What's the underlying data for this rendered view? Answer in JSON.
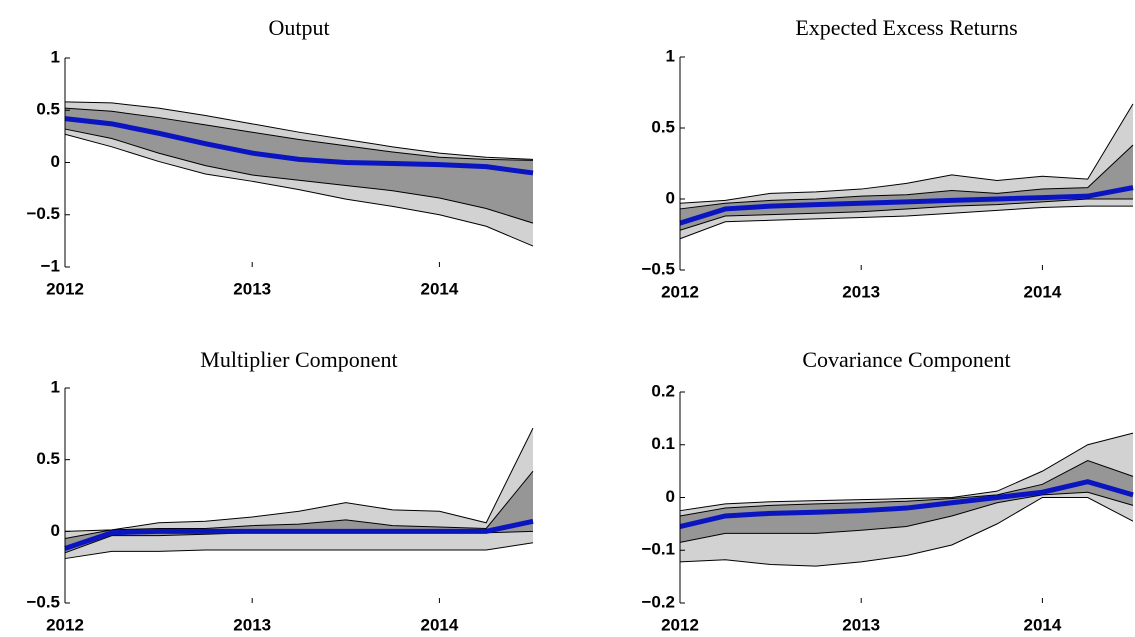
{
  "chart_data": [
    {
      "type": "fan",
      "title": "Output",
      "x": [
        2012,
        2012.25,
        2012.5,
        2012.75,
        2013,
        2013.25,
        2013.5,
        2013.75,
        2014,
        2014.25,
        2014.5
      ],
      "xlim": [
        2012,
        2014.5
      ],
      "xticks": [
        2012,
        2013,
        2014
      ],
      "ylim": [
        -1,
        1
      ],
      "yticks": [
        {
          "value": -1,
          "label": "−1"
        },
        {
          "value": -0.5,
          "label": "−0.5"
        },
        0,
        0.5,
        1
      ],
      "bands": [
        {
          "color": "#d2d2d2",
          "lower": [
            0.27,
            0.15,
            0.01,
            -0.11,
            -0.18,
            -0.26,
            -0.35,
            -0.42,
            -0.5,
            -0.61,
            -0.8
          ],
          "upper": [
            0.58,
            0.57,
            0.52,
            0.45,
            0.37,
            0.29,
            0.22,
            0.15,
            0.09,
            0.05,
            0.03
          ]
        },
        {
          "color": "#969696",
          "lower": [
            0.32,
            0.23,
            0.09,
            -0.03,
            -0.12,
            -0.17,
            -0.22,
            -0.27,
            -0.34,
            -0.44,
            -0.58
          ],
          "upper": [
            0.52,
            0.49,
            0.43,
            0.36,
            0.29,
            0.22,
            0.16,
            0.1,
            0.05,
            0.03,
            0.02
          ]
        }
      ],
      "series": [
        {
          "color": "#0a14c0",
          "values": [
            0.42,
            0.37,
            0.28,
            0.18,
            0.09,
            0.03,
            0.0,
            -0.01,
            -0.02,
            -0.04,
            -0.1
          ]
        }
      ]
    },
    {
      "type": "fan",
      "title": "Expected Excess Returns",
      "x": [
        2012,
        2012.25,
        2012.5,
        2012.75,
        2013,
        2013.25,
        2013.5,
        2013.75,
        2014,
        2014.25,
        2014.5
      ],
      "xlim": [
        2012,
        2014.5
      ],
      "xticks": [
        2012,
        2013,
        2014
      ],
      "ylim": [
        -0.5,
        1
      ],
      "yticks": [
        {
          "value": -0.5,
          "label": "−0.5"
        },
        0,
        0.5,
        1
      ],
      "bands": [
        {
          "color": "#d2d2d2",
          "lower": [
            -0.28,
            -0.16,
            -0.15,
            -0.14,
            -0.13,
            -0.12,
            -0.1,
            -0.08,
            -0.06,
            -0.05,
            -0.05
          ],
          "upper": [
            -0.03,
            -0.01,
            0.04,
            0.05,
            0.07,
            0.11,
            0.17,
            0.13,
            0.16,
            0.14,
            0.67
          ]
        },
        {
          "color": "#969696",
          "lower": [
            -0.22,
            -0.12,
            -0.11,
            -0.1,
            -0.09,
            -0.07,
            -0.05,
            -0.04,
            -0.02,
            0.0,
            0.0
          ],
          "upper": [
            -0.07,
            -0.03,
            -0.01,
            0.0,
            0.02,
            0.03,
            0.06,
            0.04,
            0.07,
            0.08,
            0.38
          ]
        }
      ],
      "series": [
        {
          "color": "#0a14c0",
          "values": [
            -0.17,
            -0.07,
            -0.05,
            -0.04,
            -0.03,
            -0.02,
            -0.01,
            0.0,
            0.01,
            0.02,
            0.08
          ]
        }
      ]
    },
    {
      "type": "fan",
      "title": "Multiplier Component",
      "x": [
        2012,
        2012.25,
        2012.5,
        2012.75,
        2013,
        2013.25,
        2013.5,
        2013.75,
        2014,
        2014.25,
        2014.5
      ],
      "xlim": [
        2012,
        2014.5
      ],
      "xticks": [
        2012,
        2013,
        2014
      ],
      "ylim": [
        -0.5,
        1
      ],
      "yticks": [
        {
          "value": -0.5,
          "label": "−0.5"
        },
        0,
        0.5,
        1
      ],
      "bands": [
        {
          "color": "#d2d2d2",
          "lower": [
            -0.19,
            -0.14,
            -0.14,
            -0.13,
            -0.13,
            -0.13,
            -0.13,
            -0.13,
            -0.13,
            -0.13,
            -0.08
          ],
          "upper": [
            0.0,
            0.01,
            0.06,
            0.07,
            0.1,
            0.14,
            0.2,
            0.15,
            0.14,
            0.06,
            0.72
          ]
        },
        {
          "color": "#969696",
          "lower": [
            -0.15,
            -0.03,
            -0.03,
            -0.02,
            -0.01,
            -0.01,
            -0.01,
            -0.01,
            -0.01,
            -0.01,
            0.0
          ],
          "upper": [
            -0.05,
            0.01,
            0.02,
            0.02,
            0.04,
            0.05,
            0.08,
            0.04,
            0.03,
            0.02,
            0.42
          ]
        }
      ],
      "series": [
        {
          "color": "#0a14c0",
          "values": [
            -0.12,
            -0.01,
            0.0,
            0.0,
            0.0,
            0.0,
            0.0,
            0.0,
            0.0,
            0.0,
            0.07
          ]
        }
      ]
    },
    {
      "type": "fan",
      "title": "Covariance Component",
      "x": [
        2012,
        2012.25,
        2012.5,
        2012.75,
        2013,
        2013.25,
        2013.5,
        2013.75,
        2014,
        2014.25,
        2014.5
      ],
      "xlim": [
        2012,
        2014.5
      ],
      "xticks": [
        2012,
        2013,
        2014
      ],
      "ylim": [
        -0.2,
        0.2
      ],
      "yticks": [
        {
          "value": -0.2,
          "label": "−0.2"
        },
        {
          "value": -0.1,
          "label": "−0.1"
        },
        0,
        0.1,
        0.2
      ],
      "bands": [
        {
          "color": "#d2d2d2",
          "lower": [
            -0.122,
            -0.118,
            -0.127,
            -0.13,
            -0.122,
            -0.11,
            -0.09,
            -0.05,
            0.0,
            0.0,
            -0.045
          ],
          "upper": [
            -0.025,
            -0.012,
            -0.008,
            -0.006,
            -0.004,
            -0.002,
            0.0,
            0.012,
            0.05,
            0.1,
            0.122
          ]
        },
        {
          "color": "#969696",
          "lower": [
            -0.085,
            -0.068,
            -0.068,
            -0.068,
            -0.062,
            -0.055,
            -0.035,
            -0.01,
            0.005,
            0.01,
            -0.015
          ],
          "upper": [
            -0.035,
            -0.02,
            -0.015,
            -0.012,
            -0.01,
            -0.007,
            -0.002,
            0.005,
            0.025,
            0.07,
            0.04
          ]
        }
      ],
      "series": [
        {
          "color": "#0a14c0",
          "values": [
            -0.055,
            -0.035,
            -0.03,
            -0.028,
            -0.025,
            -0.02,
            -0.01,
            0.0,
            0.01,
            0.03,
            0.005
          ]
        }
      ]
    }
  ]
}
